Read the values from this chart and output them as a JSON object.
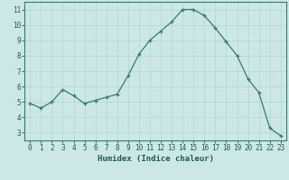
{
  "x": [
    0,
    1,
    2,
    3,
    4,
    5,
    6,
    7,
    8,
    9,
    10,
    11,
    12,
    13,
    14,
    15,
    16,
    17,
    18,
    19,
    20,
    21,
    22,
    23
  ],
  "y": [
    4.9,
    4.6,
    5.0,
    5.8,
    5.4,
    4.9,
    5.1,
    5.3,
    5.5,
    6.7,
    8.1,
    9.0,
    9.6,
    10.2,
    11.0,
    11.0,
    10.6,
    9.8,
    8.9,
    8.0,
    6.5,
    5.6,
    3.3,
    2.8
  ],
  "line_color": "#2e7d6e",
  "bg_color": "#cce8e4",
  "grid_color": "#b8d8d4",
  "xlabel": "Humidex (Indice chaleur)",
  "xlabel_color": "#1a5c50",
  "tick_color": "#1a5c50",
  "axis_color": "#2e7d6e",
  "xlim": [
    -0.5,
    23.5
  ],
  "ylim": [
    2.5,
    11.5
  ],
  "yticks": [
    3,
    4,
    5,
    6,
    7,
    8,
    9,
    10,
    11
  ],
  "xticks": [
    0,
    1,
    2,
    3,
    4,
    5,
    6,
    7,
    8,
    9,
    10,
    11,
    12,
    13,
    14,
    15,
    16,
    17,
    18,
    19,
    20,
    21,
    22,
    23
  ],
  "marker": "+"
}
